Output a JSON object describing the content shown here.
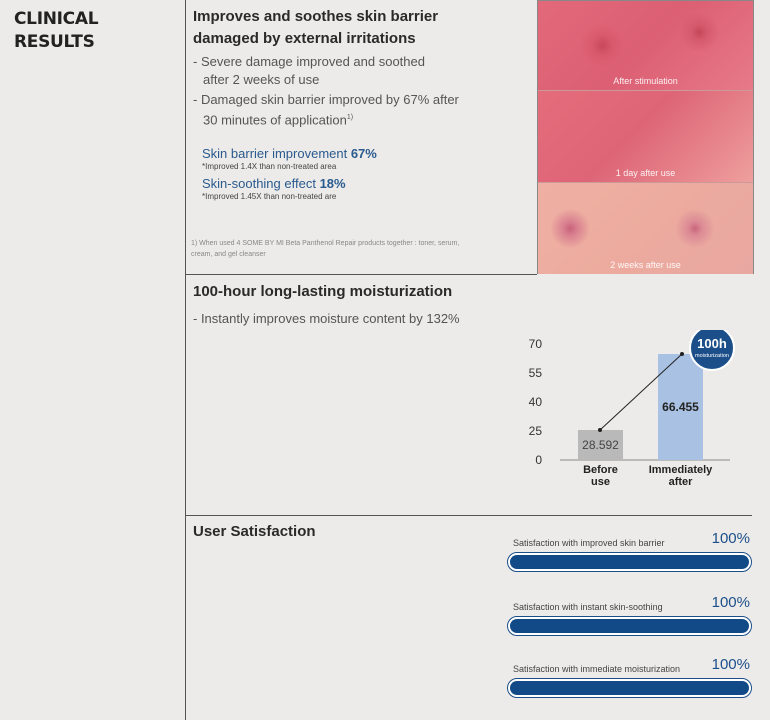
{
  "side_title": [
    "CLINICAL",
    "RESULTS"
  ],
  "section1": {
    "title": [
      "Improves and soothes skin barrier",
      "damaged by external irritations"
    ],
    "bullets": [
      [
        "- Severe damage improved and soothed",
        "after 2 weeks of use"
      ],
      [
        "- Damaged skin barrier improved by 67% after",
        "30 minutes of application"
      ]
    ],
    "footnote_mark": "1)",
    "stats": [
      {
        "label": "Skin barrier improvement ",
        "value": "67%",
        "note": "*Improved 1.4X than non-treated area"
      },
      {
        "label": "Skin-soothing effect ",
        "value": "18%",
        "note": "*Improved 1.45X than non-treated are"
      }
    ],
    "footnote": "1) When used 4 SOME BY MI Beta Panthenol Repair products together : toner, serum, cream, and gel cleanser",
    "photos": [
      "After stimulation",
      "1 day after use",
      "2 weeks after use"
    ]
  },
  "section2": {
    "title": "100-hour long-lasting moisturization",
    "bullet": "- Instantly improves moisture content by 132%",
    "badge": {
      "main": "100h",
      "sub": "moisturization"
    }
  },
  "chart_data": {
    "type": "bar",
    "categories": [
      "Before use",
      "Immediately after"
    ],
    "values": [
      28.592,
      66.455
    ],
    "value_labels": [
      "28.592",
      "66.455"
    ],
    "yticks": [
      0,
      25,
      40,
      55,
      70
    ],
    "ylim": [
      0,
      70
    ],
    "colors": [
      "#b9b9b9",
      "#a9c1e2"
    ],
    "title": "",
    "xlabel": "",
    "ylabel": ""
  },
  "section3": {
    "title": "User Satisfaction",
    "items": [
      {
        "label": "Satisfaction with improved skin barrier",
        "value": "100%",
        "level": 1.0
      },
      {
        "label": "Satisfaction with instant skin-soothing",
        "value": "100%",
        "level": 1.0
      },
      {
        "label": "Satisfaction with immediate moisturization",
        "value": "100%",
        "level": 1.0
      }
    ],
    "accent": "#124a87"
  }
}
